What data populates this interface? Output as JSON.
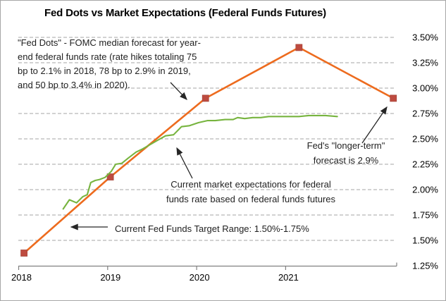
{
  "title": "Fed Dots vs Market Expectations (Federal Funds Futures)",
  "colors": {
    "fed_dots_line": "#ED6B1E",
    "fed_dots_marker": "#BE4B40",
    "market_line": "#77B43F",
    "gridline": "#A6A6A6",
    "axis": "#808080",
    "annotation_text": "#1F1F1F",
    "arrow": "#262626"
  },
  "annotations": {
    "fed_dots": {
      "lines": [
        "\"Fed Dots\" - FOMC median forecast for year-",
        "end federal funds rate (rate hikes totaling 75",
        "bp to 2.1% in 2018, 78 bp to 2.9% in 2019,",
        "and 50 bp to 3.4% in 2020)."
      ]
    },
    "longer_term": {
      "lines": [
        "Fed's \"longer-term\"",
        "forecast is 2.9%"
      ]
    },
    "market": {
      "lines": [
        "Current market expectations for federal",
        "funds rate based on federal funds futures"
      ]
    },
    "target_range": {
      "text": "Current Fed Funds Target Range: 1.50%-1.75%"
    }
  },
  "chart_data": {
    "type": "line",
    "title": "Fed Dots vs Market Expectations (Federal Funds Futures)",
    "xlim": [
      2018,
      2022.3
    ],
    "ylim": [
      1.25,
      3.5
    ],
    "grid": "horizontal-dashed",
    "legend": "none (series labeled via arrow annotations)",
    "x_ticks": [
      2018,
      2019,
      2020,
      2021
    ],
    "x_tick_labels": [
      "2018",
      "2019",
      "2020",
      "2021"
    ],
    "y_ticks": [
      1.25,
      1.5,
      1.75,
      2,
      2.25,
      2.5,
      2.75,
      3,
      3.25,
      3.5
    ],
    "y_tick_labels": [
      "1.25%",
      "1.50%",
      "1.75%",
      "2.00%",
      "2.25%",
      "2.50%",
      "2.75%",
      "3.00%",
      "3.25%",
      "3.50%"
    ],
    "series": [
      {
        "name": "Fed Dots (FOMC median year-end forecast)",
        "color": "#ED6B1E",
        "marker": "square",
        "marker_color": "#BE4B40",
        "x": [
          2018.06,
          2019.03,
          2020.1,
          2021.15,
          2022.21
        ],
        "values": [
          1.375,
          2.125,
          2.9,
          3.4,
          2.9
        ]
      },
      {
        "name": "Market expectations (federal funds futures)",
        "color": "#77B43F",
        "marker": "none",
        "x": [
          2018.5,
          2018.57,
          2018.65,
          2018.72,
          2018.77,
          2018.81,
          2018.86,
          2018.91,
          2018.97,
          2019.04,
          2019.09,
          2019.16,
          2019.23,
          2019.32,
          2019.39,
          2019.47,
          2019.57,
          2019.65,
          2019.74,
          2019.83,
          2019.92,
          2020.02,
          2020.12,
          2020.21,
          2020.32,
          2020.41,
          2020.46,
          2020.54,
          2020.63,
          2020.72,
          2020.81,
          2020.95,
          2021.06,
          2021.15,
          2021.26,
          2021.36,
          2021.45,
          2021.58
        ],
        "values": [
          1.81,
          1.9,
          1.87,
          1.93,
          1.95,
          2.07,
          2.09,
          2.1,
          2.12,
          2.18,
          2.25,
          2.26,
          2.31,
          2.37,
          2.4,
          2.44,
          2.49,
          2.53,
          2.54,
          2.62,
          2.63,
          2.66,
          2.68,
          2.68,
          2.69,
          2.69,
          2.71,
          2.7,
          2.71,
          2.71,
          2.72,
          2.72,
          2.72,
          2.72,
          2.73,
          2.73,
          2.73,
          2.72
        ]
      }
    ]
  }
}
